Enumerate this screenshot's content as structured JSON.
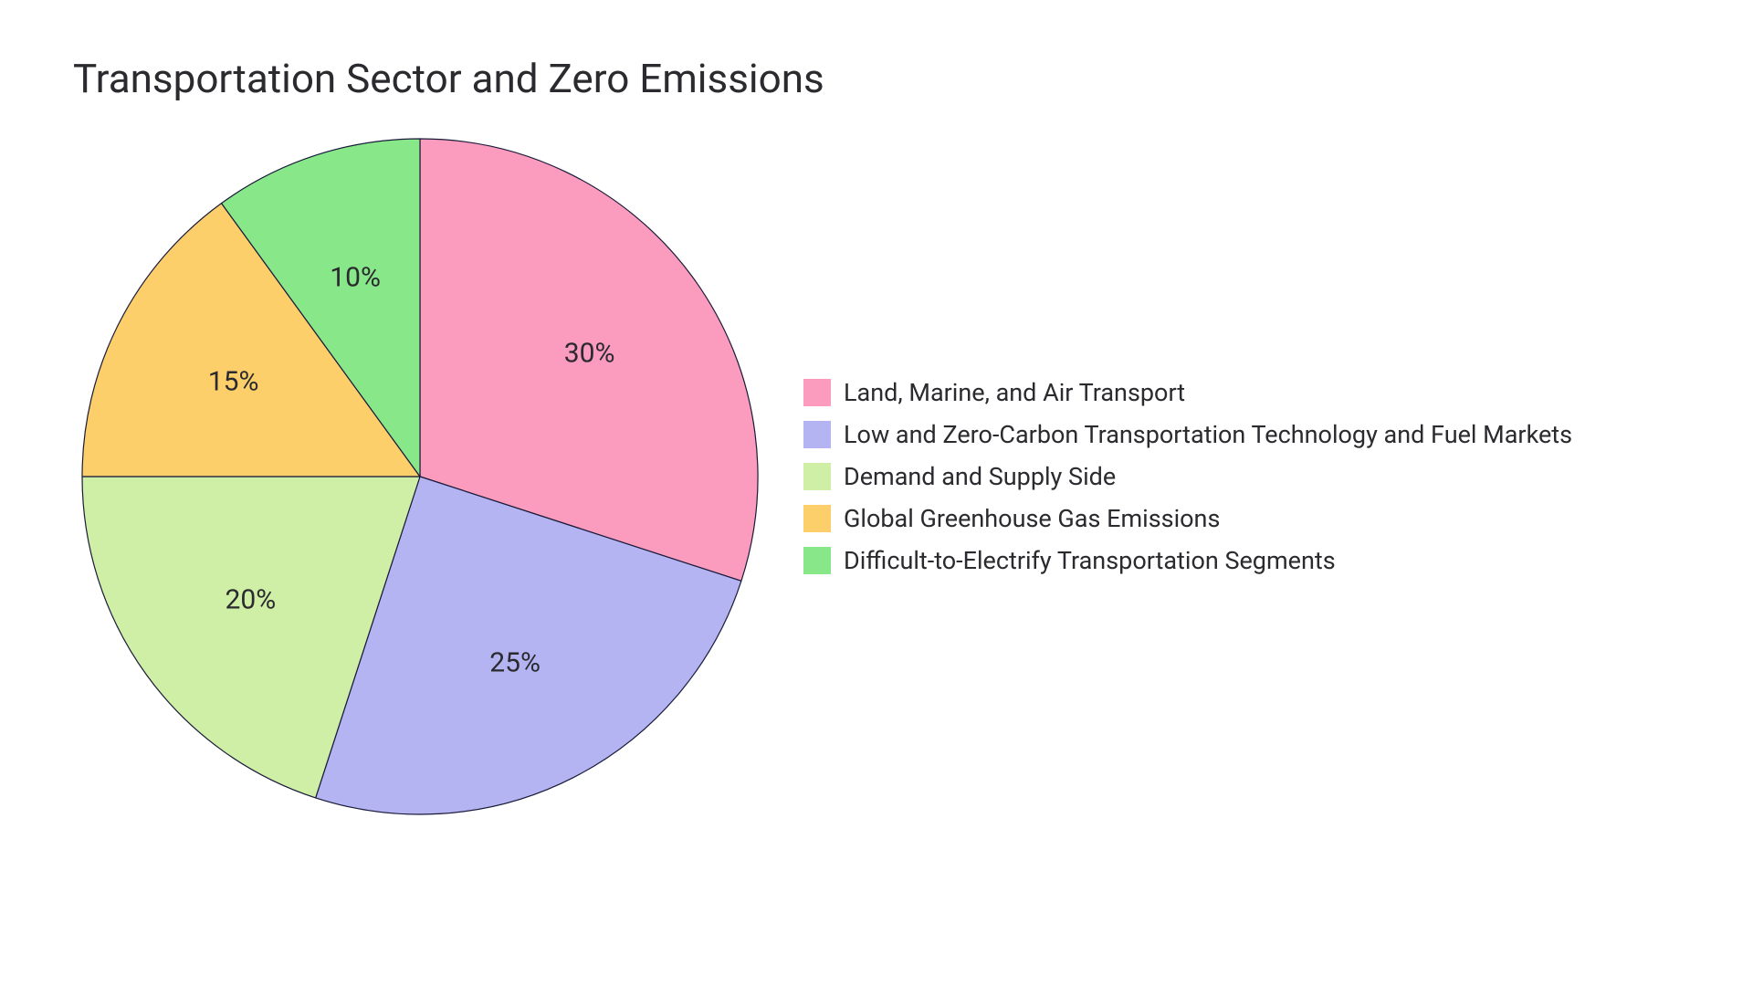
{
  "chart": {
    "type": "pie",
    "title": "Transportation Sector and Zero Emissions",
    "title_fontsize": 44,
    "title_color": "#2a2a2f",
    "background_color": "#ffffff",
    "stroke_color": "#1a1a3a",
    "stroke_width": 1.2,
    "start_angle_deg": -90,
    "direction": "clockwise",
    "label_fontsize": 30,
    "label_color": "#2a2a2f",
    "legend_fontsize": 27,
    "legend_swatch_size": 30,
    "legend_position": "right-middle",
    "slices": [
      {
        "label": "Land, Marine, and Air Transport",
        "value": 30,
        "display": "30%",
        "color": "#fb9bbd"
      },
      {
        "label": "Low and Zero-Carbon Transportation Technology and Fuel Markets",
        "value": 25,
        "display": "25%",
        "color": "#b4b4f3"
      },
      {
        "label": "Demand and Supply Side",
        "value": 20,
        "display": "20%",
        "color": "#ceefa5"
      },
      {
        "label": "Global Greenhouse Gas Emissions",
        "value": 15,
        "display": "15%",
        "color": "#fccf6b"
      },
      {
        "label": "Difficult-to-Electrify Transportation Segments",
        "value": 10,
        "display": "10%",
        "color": "#88e789"
      }
    ]
  }
}
